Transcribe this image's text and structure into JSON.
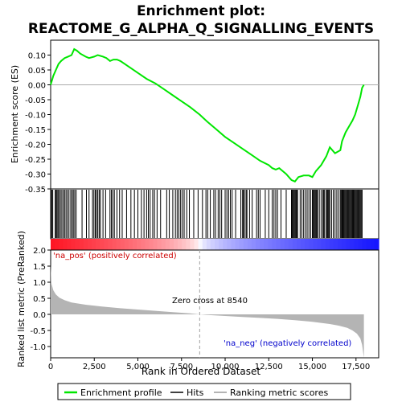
{
  "chart_data": {
    "type": "line",
    "title": "Enrichment plot:\nREACTOME_G_ALPHA_Q_SIGNALLING_EVENTS",
    "colors": {
      "enrichment_line": "#00e600",
      "hits": "#000000",
      "metric_fill": "#b4b4b4",
      "zero_cross_line": "#a0a0a0",
      "pos_label": "#cc0000",
      "neg_label": "#0000cc"
    },
    "top_panel": {
      "ylabel": "Enrichment score (ES)",
      "ylim": [
        -0.35,
        0.15
      ],
      "yticks": [
        0.1,
        0.05,
        0.0,
        -0.05,
        -0.1,
        -0.15,
        -0.2,
        -0.25,
        -0.3,
        -0.35
      ],
      "ytick_labels": [
        "0.10",
        "0.05",
        "0.00",
        "-0.05",
        "-0.10",
        "-0.15",
        "-0.20",
        "-0.25",
        "-0.30",
        "-0.35"
      ],
      "series": [
        {
          "x": [
            0,
            150,
            300,
            450,
            600,
            800,
            1000,
            1200,
            1350,
            1500,
            1700,
            2000,
            2200,
            2500,
            2700,
            3000,
            3200,
            3400,
            3600,
            3800,
            4000,
            4500,
            5000,
            5500,
            6000,
            6500,
            7000,
            7500,
            8000,
            8540,
            9000,
            9500,
            10000,
            10500,
            11000,
            11500,
            12000,
            12500,
            12700,
            12900,
            13100,
            13500,
            13800,
            14000,
            14200,
            14500,
            14800,
            15000,
            15200,
            15500,
            15800,
            16000,
            16300,
            16600,
            16700,
            16900,
            17100,
            17300,
            17450,
            17600,
            17750,
            17850,
            17950
          ],
          "y": [
            0.0,
            0.03,
            0.05,
            0.07,
            0.08,
            0.09,
            0.095,
            0.1,
            0.12,
            0.115,
            0.105,
            0.095,
            0.09,
            0.095,
            0.1,
            0.095,
            0.09,
            0.08,
            0.085,
            0.085,
            0.08,
            0.06,
            0.04,
            0.02,
            0.005,
            -0.015,
            -0.035,
            -0.055,
            -0.075,
            -0.1,
            -0.125,
            -0.15,
            -0.175,
            -0.195,
            -0.215,
            -0.235,
            -0.255,
            -0.27,
            -0.28,
            -0.285,
            -0.28,
            -0.3,
            -0.32,
            -0.325,
            -0.31,
            -0.305,
            -0.305,
            -0.31,
            -0.29,
            -0.27,
            -0.24,
            -0.21,
            -0.23,
            -0.22,
            -0.19,
            -0.16,
            -0.14,
            -0.12,
            -0.1,
            -0.07,
            -0.04,
            -0.01,
            0.0
          ]
        }
      ]
    },
    "hits_panel": {
      "hit_positions": [
        20,
        60,
        120,
        260,
        310,
        360,
        420,
        480,
        560,
        640,
        720,
        800,
        880,
        960,
        1050,
        1150,
        1230,
        1300,
        1380,
        1460,
        1800,
        2050,
        2200,
        2400,
        2480,
        2560,
        2620,
        2700,
        2780,
        2850,
        3000,
        3150,
        3400,
        3480,
        3560,
        3650,
        3800,
        3950,
        4100,
        4350,
        4600,
        4800,
        5000,
        5200,
        5350,
        5500,
        5600,
        5700,
        5850,
        5950,
        6100,
        6300,
        6650,
        6800,
        7000,
        7150,
        7250,
        7350,
        7450,
        7550,
        7650,
        7800,
        7950,
        8200,
        8450,
        8700,
        8900,
        9000,
        9150,
        9350,
        9450,
        9600,
        9700,
        9800,
        10000,
        10100,
        10200,
        10300,
        10400,
        10600,
        10900,
        11000,
        11050,
        11100,
        11200,
        11250,
        11400,
        11550,
        11800,
        11900,
        12000,
        12300,
        12500,
        12700,
        12800,
        12900,
        13000,
        13200,
        13500,
        13800,
        13850,
        13900,
        13950,
        14000,
        14050,
        14100,
        14150,
        14300,
        14400,
        14500,
        14600,
        14700,
        14800,
        14900,
        15000,
        15050,
        15100,
        15150,
        15200,
        15250,
        15300,
        15400,
        15500,
        15600,
        15650,
        15700,
        15800,
        15850,
        15900,
        15950,
        16000,
        16100,
        16200,
        16300,
        16400,
        16500,
        16600,
        16650,
        16700,
        16750,
        16800,
        16850,
        16900,
        16950,
        17000,
        17050,
        17100,
        17150,
        17200,
        17250,
        17300,
        17350,
        17400,
        17450,
        17500,
        17550,
        17600,
        17650,
        17700,
        17750,
        17800,
        17850
      ]
    },
    "bottom_panel": {
      "xlabel": "Rank in Ordered Dataset",
      "ylabel": "Ranked list metric (PreRanked)",
      "ylim": [
        -1.35,
        2.0
      ],
      "yticks": [
        2.0,
        1.5,
        1.0,
        0.5,
        0.0,
        -0.5,
        -1.0
      ],
      "ytick_labels": [
        "2.0",
        "1.5",
        "1.0",
        "0.5",
        "0.0",
        "-0.5",
        "-1.0"
      ],
      "xlim": [
        0,
        18800
      ],
      "xticks": [
        0,
        2500,
        5000,
        7500,
        10000,
        12500,
        15000,
        17500
      ],
      "xtick_labels": [
        "0",
        "2,500",
        "5,000",
        "7,500",
        "10,000",
        "12,500",
        "15,000",
        "17,500"
      ],
      "metric_curve": {
        "x": [
          0,
          50,
          150,
          300,
          500,
          800,
          1200,
          2000,
          3000,
          4000,
          5000,
          6000,
          7000,
          8000,
          8540,
          9000,
          10000,
          11000,
          12000,
          13000,
          14000,
          15000,
          16000,
          16500,
          17000,
          17300,
          17550,
          17750,
          17850,
          17950
        ],
        "y": [
          1.55,
          0.95,
          0.75,
          0.62,
          0.52,
          0.44,
          0.37,
          0.3,
          0.24,
          0.19,
          0.15,
          0.11,
          0.07,
          0.03,
          0.0,
          -0.02,
          -0.05,
          -0.08,
          -0.11,
          -0.14,
          -0.18,
          -0.23,
          -0.3,
          -0.35,
          -0.42,
          -0.5,
          -0.6,
          -0.75,
          -0.95,
          -1.35
        ]
      },
      "zero_cross_rank": 8540,
      "annotations": {
        "pos": "'na_pos' (positively correlated)",
        "neg": "'na_neg' (negatively correlated)",
        "zero": "Zero cross at 8540"
      }
    },
    "legend": {
      "entries": [
        "Enrichment profile",
        "Hits",
        "Ranking metric scores"
      ]
    }
  }
}
